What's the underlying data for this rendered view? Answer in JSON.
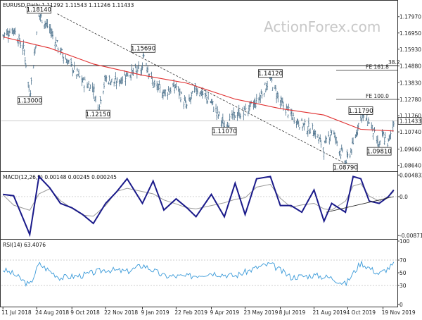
{
  "chart_data": [
    {
      "type": "candlestick",
      "title": "EURUSD,Daily  1.11292 1.11543 1.11246 1.11433",
      "watermark": "ActionForex.com",
      "yticks": [
        "1.17970",
        "1.16950",
        "1.15930",
        "1.14880",
        "1.13830",
        "1.12780",
        "1.11760",
        "1.10740",
        "1.09660",
        "1.08640"
      ],
      "last_price": "1.11433",
      "ylim": [
        1.084,
        1.184
      ],
      "ma_color": "#e03030",
      "bar_color": "#4a708b",
      "annotations": [
        {
          "label": "1.18140",
          "date": "2018-08-27",
          "value": 1.1814
        },
        {
          "label": "1.15690",
          "date": "2019-01-10",
          "value": 1.1569
        },
        {
          "label": "1.13000",
          "date": "2018-08-15",
          "value": 1.13
        },
        {
          "label": "1.12150",
          "date": "2018-11-12",
          "value": 1.1215
        },
        {
          "label": "1.14120",
          "date": "2019-06-25",
          "value": 1.1412
        },
        {
          "label": "1.11070",
          "date": "2019-04-26",
          "value": 1.1107
        },
        {
          "label": "1.11790",
          "date": "2019-10-21",
          "value": 1.1179
        },
        {
          "label": "1.09810",
          "date": "2019-11-14",
          "value": 1.0981
        },
        {
          "label": "1.08790",
          "date": "2019-10-01",
          "value": 1.0879
        }
      ],
      "levels": [
        {
          "label": "38.2",
          "value": 1.149
        },
        {
          "label": "FE 161.8",
          "value": 1.1461
        },
        {
          "label": "FE 100.0",
          "value": 1.1278
        }
      ],
      "horizontal_line": 1.149,
      "trend_line": {
        "from": {
          "date": "2018-09-20",
          "value": 1.1815
        },
        "to": {
          "date": "2019-10-01",
          "value": 1.0875
        }
      },
      "series": [
        {
          "x": [
            "2018-07-11",
            "2018-07-25",
            "2018-08-08",
            "2018-08-15",
            "2018-08-27",
            "2018-09-10",
            "2018-09-24",
            "2018-10-09",
            "2018-10-23",
            "2018-11-06",
            "2018-11-12",
            "2018-11-22",
            "2018-12-06",
            "2018-12-20",
            "2019-01-09",
            "2019-01-10",
            "2019-01-23",
            "2019-02-06",
            "2019-02-22",
            "2019-03-08",
            "2019-03-20",
            "2019-04-09",
            "2019-04-26",
            "2019-05-10",
            "2019-05-23",
            "2019-06-07",
            "2019-06-25",
            "2019-07-08",
            "2019-07-22",
            "2019-08-05",
            "2019-08-21",
            "2019-09-03",
            "2019-09-13",
            "2019-10-01",
            "2019-10-11",
            "2019-10-21",
            "2019-11-01",
            "2019-11-14",
            "2019-11-19",
            "2019-11-26",
            "2019-12-03"
          ],
          "close": [
            1.168,
            1.172,
            1.158,
            1.13,
            1.181,
            1.172,
            1.158,
            1.148,
            1.139,
            1.135,
            1.122,
            1.141,
            1.138,
            1.144,
            1.146,
            1.157,
            1.137,
            1.132,
            1.136,
            1.123,
            1.135,
            1.126,
            1.111,
            1.118,
            1.12,
            1.126,
            1.141,
            1.126,
            1.118,
            1.112,
            1.108,
            1.097,
            1.109,
            1.088,
            1.099,
            1.118,
            1.114,
            1.098,
            1.105,
            1.1,
            1.114
          ]
        },
        {
          "name": "MA",
          "x": [
            "2018-07-11",
            "2018-09-10",
            "2018-11-06",
            "2019-01-09",
            "2019-03-08",
            "2019-05-10",
            "2019-07-08",
            "2019-09-03",
            "2019-10-21",
            "2019-12-03"
          ],
          "values": [
            1.167,
            1.16,
            1.15,
            1.143,
            1.138,
            1.128,
            1.122,
            1.118,
            1.109,
            1.108
          ]
        }
      ]
    },
    {
      "type": "line",
      "title": "MACD(12,26,9) 0.00148 0.00245 0.000245",
      "yticks": [
        "0.004832",
        "0.0",
        "-0.008718"
      ],
      "ylim": [
        -0.009,
        0.0052
      ],
      "line_color": "#1a1a8a",
      "signal_color": "#9a9a9a",
      "trend_line": {
        "from": {
          "date": "2019-09-06",
          "value": -0.0035
        },
        "to": {
          "date": "2019-12-03",
          "value": 0.0
        }
      },
      "series": [
        {
          "name": "MACD",
          "x": [
            "2018-07-11",
            "2018-07-25",
            "2018-08-15",
            "2018-08-27",
            "2018-09-10",
            "2018-09-24",
            "2018-10-09",
            "2018-10-23",
            "2018-11-06",
            "2018-11-22",
            "2018-12-06",
            "2018-12-20",
            "2019-01-09",
            "2019-01-23",
            "2019-02-06",
            "2019-02-22",
            "2019-03-08",
            "2019-03-20",
            "2019-04-09",
            "2019-04-26",
            "2019-05-10",
            "2019-05-23",
            "2019-06-07",
            "2019-06-25",
            "2019-07-08",
            "2019-07-22",
            "2019-08-05",
            "2019-08-21",
            "2019-09-03",
            "2019-09-13",
            "2019-10-01",
            "2019-10-11",
            "2019-10-21",
            "2019-11-01",
            "2019-11-14",
            "2019-11-26",
            "2019-12-03"
          ],
          "values": [
            0.0005,
            0.0002,
            -0.0085,
            0.0045,
            0.002,
            -0.0015,
            -0.0025,
            -0.004,
            -0.006,
            -0.0015,
            0.001,
            0.004,
            -0.0015,
            0.0035,
            -0.003,
            -0.0005,
            -0.0025,
            -0.0045,
            0.0005,
            -0.0045,
            0.003,
            -0.004,
            0.004,
            0.0045,
            -0.002,
            -0.002,
            -0.0035,
            0.0015,
            -0.0055,
            -0.0015,
            -0.0035,
            0.0045,
            0.004,
            -0.001,
            -0.0015,
            0.0,
            0.0015
          ]
        }
      ]
    },
    {
      "type": "line",
      "title": "RSI(14) 63.4076",
      "yticks": [
        "100",
        "70",
        "50",
        "30",
        "0"
      ],
      "ylim": [
        0,
        100
      ],
      "line_color": "#3a9ad9",
      "dashed_levels": [
        70,
        30
      ],
      "series": [
        {
          "name": "RSI",
          "x": [
            "2018-07-11",
            "2018-07-25",
            "2018-08-15",
            "2018-08-27",
            "2018-09-24",
            "2018-10-23",
            "2018-11-22",
            "2018-12-20",
            "2019-01-10",
            "2019-02-06",
            "2019-03-08",
            "2019-04-09",
            "2019-05-10",
            "2019-06-07",
            "2019-06-25",
            "2019-07-22",
            "2019-08-21",
            "2019-09-13",
            "2019-10-01",
            "2019-10-21",
            "2019-11-14",
            "2019-12-03"
          ],
          "values": [
            55,
            48,
            30,
            64,
            42,
            46,
            55,
            52,
            62,
            45,
            44,
            50,
            45,
            58,
            64,
            43,
            46,
            42,
            32,
            66,
            48,
            63
          ]
        }
      ]
    }
  ],
  "x_axis": {
    "dates": [
      "11 Jul 2018",
      "24 Aug 2018",
      "9 Oct 2018",
      "22 Nov 2018",
      "9 Jan 2019",
      "22 Feb 2019",
      "9 Apr 2019",
      "23 May 2019",
      "8 Jul 2019",
      "21 Aug 2019",
      "4 Oct 2019",
      "19 Nov 2019"
    ]
  }
}
